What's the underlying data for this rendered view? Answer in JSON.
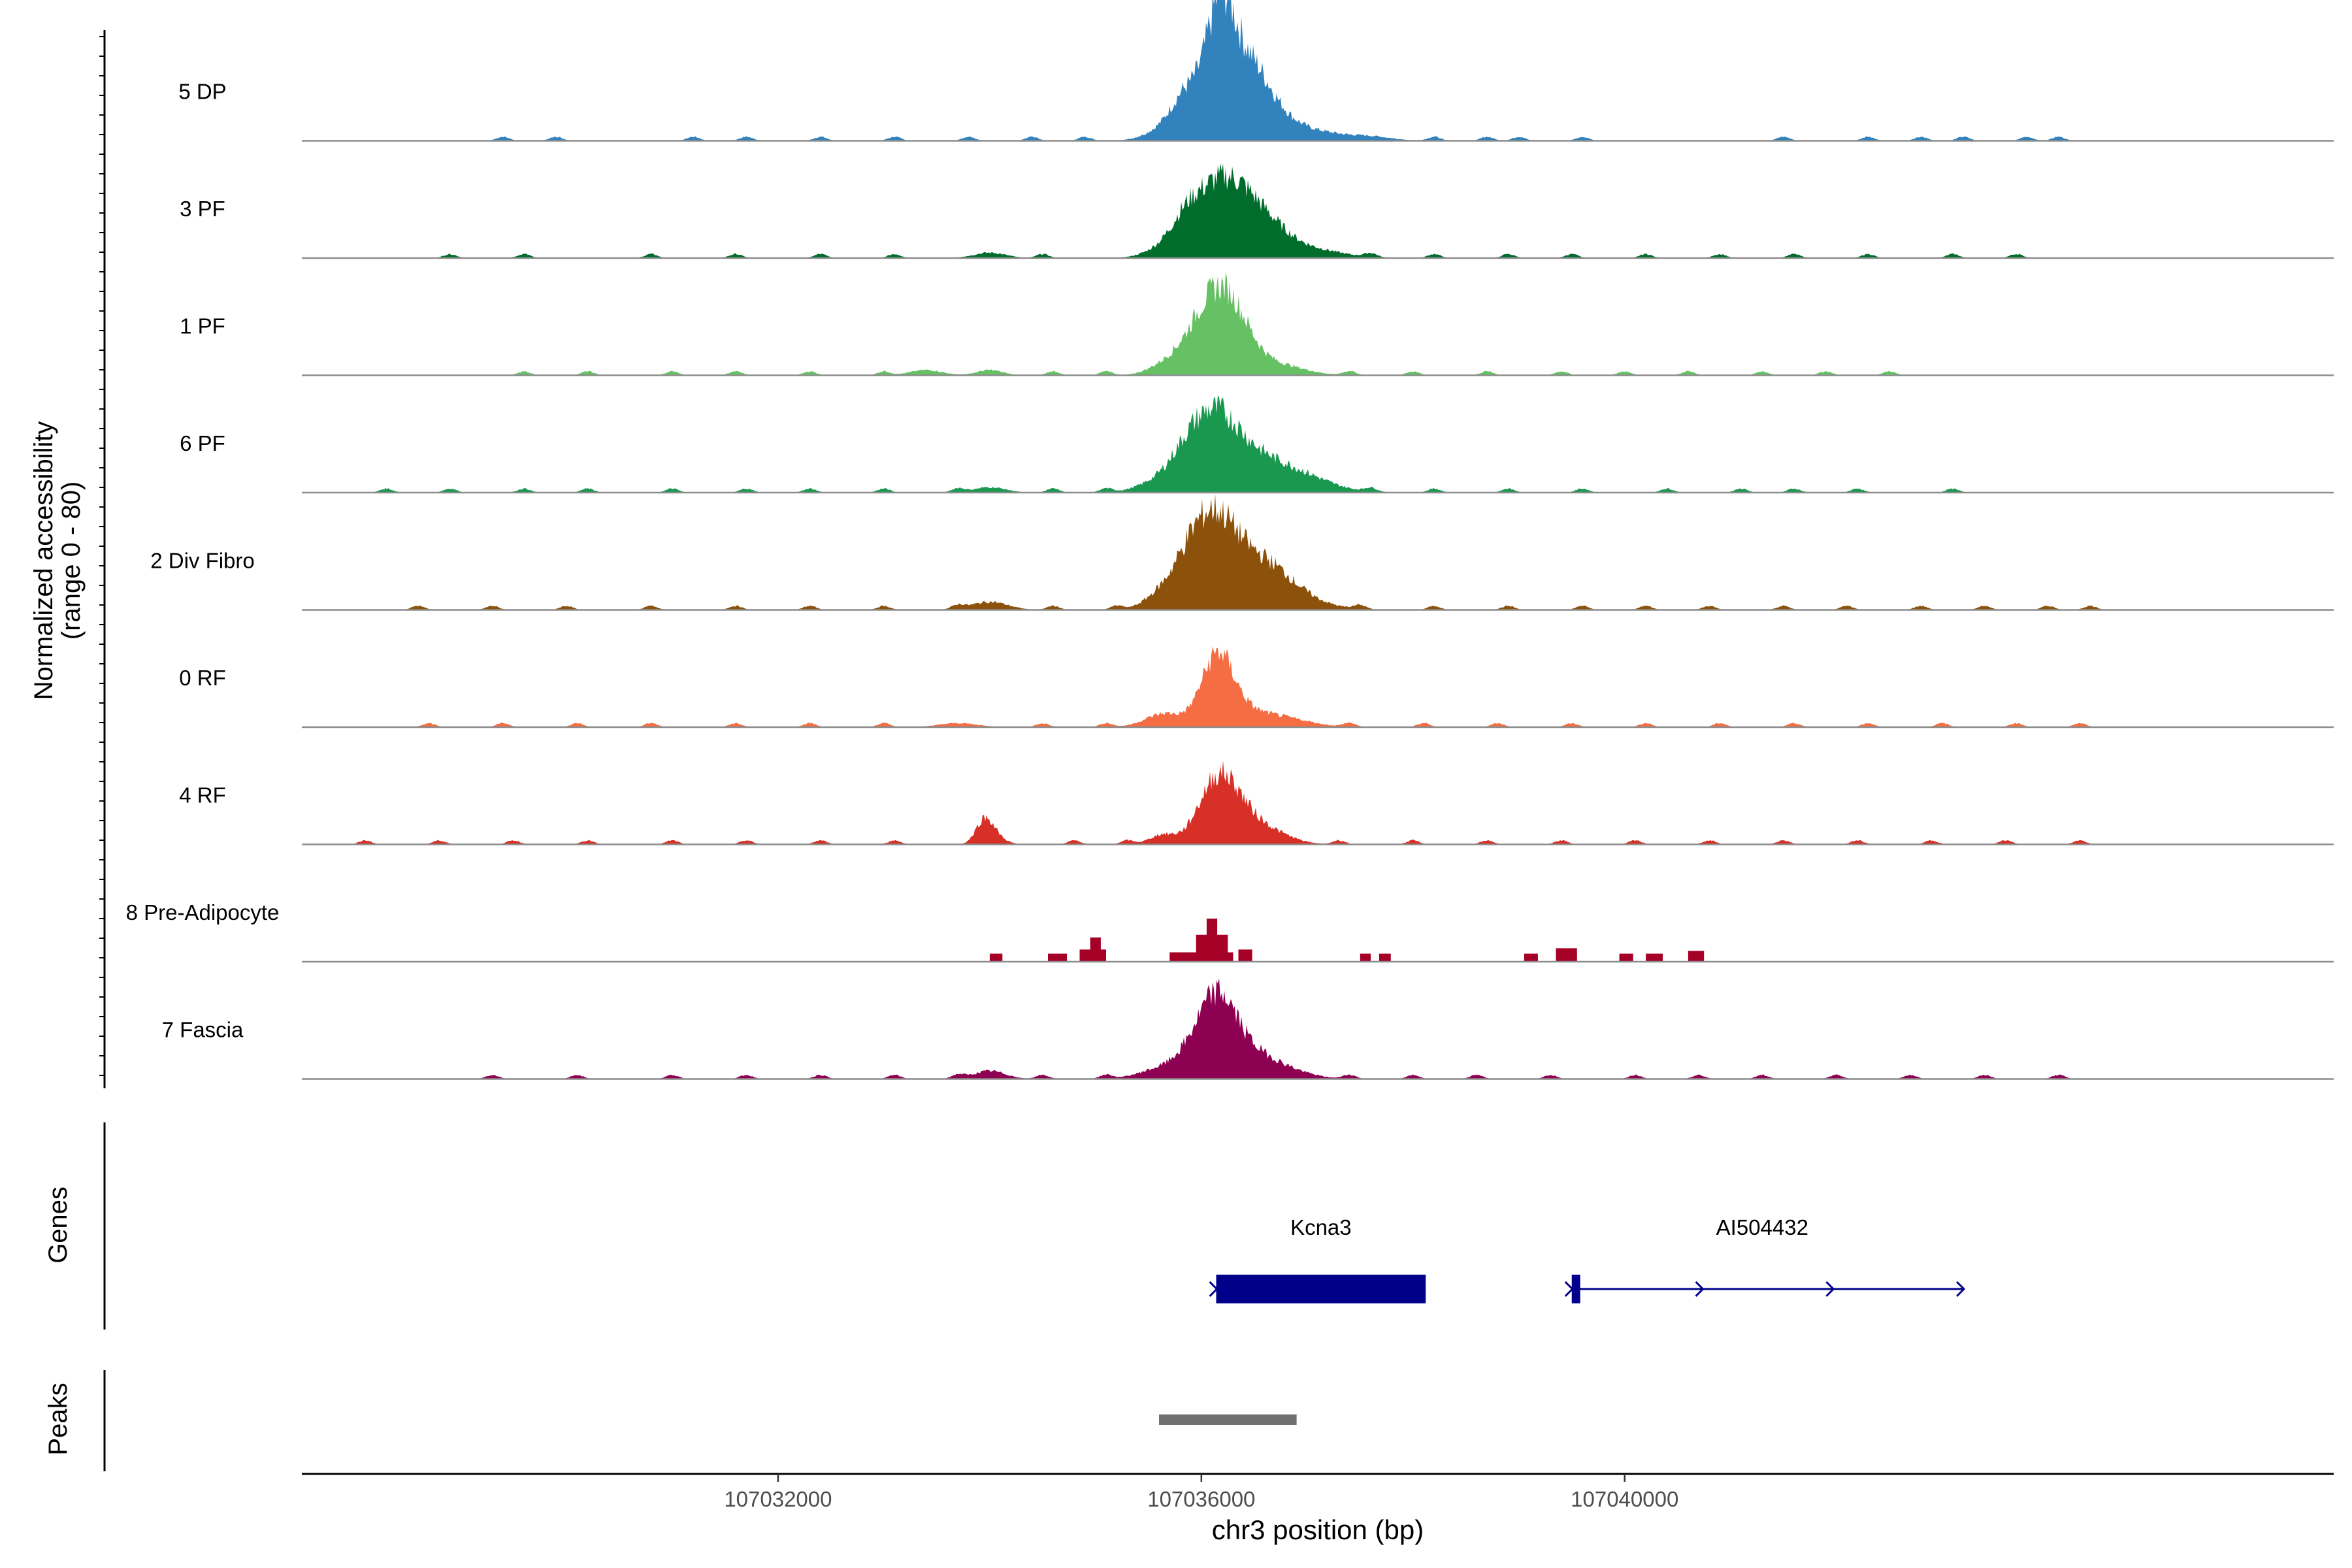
{
  "chart_data": {
    "type": "area",
    "title": "",
    "ylabel_line1": "Normalized accessibility",
    "ylabel_line2": "(range 0 - 80)",
    "xlabel": "chr3 position (bp)",
    "ylim": [
      0,
      80
    ],
    "xlim": [
      107027500,
      107046700
    ],
    "x_ticks": [
      107032000,
      107036000,
      107040000
    ],
    "x_tick_labels": [
      "107032000",
      "107036000",
      "107040000"
    ],
    "tracks": [
      {
        "name": "5 DP",
        "color": "#3182BD",
        "peaks": [
          [
            107035620,
            6,
            170
          ],
          [
            107035830,
            14,
            120
          ],
          [
            107036000,
            28,
            210
          ],
          [
            107036150,
            50,
            120
          ],
          [
            107036250,
            40,
            120
          ],
          [
            107036450,
            40,
            150
          ],
          [
            107036650,
            20,
            180
          ],
          [
            107037000,
            8,
            280
          ],
          [
            107037600,
            3,
            200
          ]
        ],
        "blips": [
          107029400,
          107029900,
          107031200,
          107031700,
          107032400,
          107033100,
          107033800,
          107034400,
          107034900,
          107038200,
          107038700,
          107039000,
          107039600,
          107041500,
          107042300,
          107042800,
          107043200,
          107043800,
          107044100
        ]
      },
      {
        "name": "3 PF",
        "color": "#006D2C",
        "peaks": [
          [
            107035620,
            5,
            170
          ],
          [
            107035850,
            14,
            140
          ],
          [
            107036100,
            38,
            240
          ],
          [
            107036350,
            30,
            220
          ],
          [
            107036650,
            15,
            200
          ],
          [
            107037000,
            7,
            300
          ],
          [
            107034000,
            4,
            150
          ]
        ],
        "blips": [
          107028900,
          107029600,
          107030800,
          107031600,
          107032400,
          107033100,
          107034500,
          107037600,
          107038200,
          107038900,
          107039500,
          107040200,
          107040900,
          107041600,
          107042300,
          107043100,
          107043700
        ]
      },
      {
        "name": "1 PF",
        "color": "#66C164",
        "peaks": [
          [
            107035650,
            7,
            160
          ],
          [
            107035900,
            14,
            160
          ],
          [
            107036150,
            50,
            190
          ],
          [
            107036350,
            20,
            180
          ],
          [
            107036700,
            8,
            260
          ],
          [
            107033400,
            4,
            150
          ],
          [
            107034000,
            4,
            120
          ]
        ],
        "blips": [
          107029600,
          107030200,
          107031000,
          107031600,
          107032300,
          107033000,
          107034600,
          107035100,
          107037400,
          107038000,
          107038700,
          107039400,
          107040000,
          107040600,
          107041300,
          107041900,
          107042500
        ]
      },
      {
        "name": "6 PF",
        "color": "#1A9850",
        "peaks": [
          [
            107035600,
            8,
            200
          ],
          [
            107035850,
            18,
            160
          ],
          [
            107036100,
            42,
            200
          ],
          [
            107036350,
            22,
            240
          ],
          [
            107036700,
            14,
            300
          ],
          [
            107037000,
            6,
            300
          ],
          [
            107034000,
            4,
            150
          ]
        ],
        "blips": [
          107028300,
          107028900,
          107029600,
          107030200,
          107031000,
          107031700,
          107032300,
          107033000,
          107033700,
          107034600,
          107035100,
          107037600,
          107038200,
          107038900,
          107039600,
          107040400,
          107041100,
          107041600,
          107042200,
          107043100
        ]
      },
      {
        "name": "2 Div Fibro",
        "color": "#8C510A",
        "peaks": [
          [
            107035600,
            10,
            150
          ],
          [
            107035850,
            20,
            150
          ],
          [
            107036100,
            55,
            200
          ],
          [
            107036400,
            28,
            260
          ],
          [
            107036700,
            16,
            230
          ],
          [
            107037000,
            5,
            260
          ],
          [
            107034000,
            6,
            170
          ]
        ],
        "blips": [
          107028600,
          107029300,
          107030000,
          107030800,
          107031600,
          107032300,
          107033000,
          107033700,
          107034600,
          107035200,
          107037500,
          107038200,
          107038900,
          107039600,
          107040200,
          107040800,
          107041500,
          107042100,
          107042800,
          107043400,
          107044000,
          107044400
        ]
      },
      {
        "name": "0 RF",
        "color": "#F46D43",
        "peaks": [
          [
            107035650,
            10,
            180
          ],
          [
            107036150,
            50,
            150
          ],
          [
            107036400,
            10,
            220
          ],
          [
            107036800,
            6,
            250
          ],
          [
            107033700,
            3,
            180
          ]
        ],
        "blips": [
          107028700,
          107029400,
          107030100,
          107030800,
          107031600,
          107032300,
          107033000,
          107034500,
          107035100,
          107037400,
          107038100,
          107038800,
          107039500,
          107040200,
          107040900,
          107041600,
          107042300,
          107043000,
          107043700,
          107044300
        ]
      },
      {
        "name": "4 RF",
        "color": "#D73027",
        "peaks": [
          [
            107035630,
            7,
            120
          ],
          [
            107036150,
            45,
            180
          ],
          [
            107036400,
            16,
            200
          ],
          [
            107036700,
            6,
            200
          ],
          [
            107033950,
            17,
            80
          ],
          [
            107034050,
            5,
            100
          ]
        ],
        "blips": [
          107028100,
          107028800,
          107029500,
          107030200,
          107031000,
          107031700,
          107032400,
          107033100,
          107034800,
          107035300,
          107037300,
          107038000,
          107038700,
          107039400,
          107040100,
          107040800,
          107041500,
          107042200,
          107042900,
          107043600,
          107044300
        ]
      },
      {
        "name": "8 Pre-Adipocyte",
        "color": "#A50026",
        "peaks": [],
        "blips": [],
        "blocks": [
          [
            107034000,
            107034120,
            6
          ],
          [
            107034550,
            107034730,
            6
          ],
          [
            107034850,
            107035100,
            9
          ],
          [
            107034950,
            107035050,
            18
          ],
          [
            107035700,
            107036300,
            7
          ],
          [
            107035950,
            107036250,
            20
          ],
          [
            107036050,
            107036150,
            32
          ],
          [
            107036350,
            107036480,
            9
          ],
          [
            107037500,
            107037600,
            6
          ],
          [
            107037680,
            107037790,
            6
          ],
          [
            107039050,
            107039180,
            6
          ],
          [
            107039350,
            107039550,
            10
          ],
          [
            107039950,
            107040080,
            6
          ],
          [
            107040200,
            107040360,
            6
          ],
          [
            107040600,
            107040750,
            8
          ]
        ]
      },
      {
        "name": "7 Fascia",
        "color": "#8E0152",
        "peaks": [
          [
            107035600,
            7,
            200
          ],
          [
            107035900,
            14,
            160
          ],
          [
            107036150,
            50,
            170
          ],
          [
            107036400,
            18,
            230
          ],
          [
            107036750,
            7,
            250
          ],
          [
            107034000,
            6,
            150
          ]
        ],
        "blips": [
          107029300,
          107030100,
          107031000,
          107031700,
          107032400,
          107033100,
          107033700,
          107034500,
          107035100,
          107037400,
          107038000,
          107038600,
          107039300,
          107040100,
          107040700,
          107041300,
          107042000,
          107042700,
          107043400,
          107044100
        ]
      }
    ],
    "genes": [
      {
        "name": "Kcna3",
        "start": 107036140,
        "end": 107038120,
        "block_start": 107036140,
        "block_end": 107038120,
        "strand": "+",
        "label_x": 107037130
      },
      {
        "name": "AI504432",
        "start": 107039500,
        "end": 107043200,
        "block_start": 107039500,
        "block_end": 107039580,
        "strand": "+",
        "label_x": 107041300
      }
    ],
    "peaks_track": [
      {
        "start": 107035600,
        "end": 107036900
      }
    ],
    "panel_labels": {
      "genes": "Genes",
      "peaks": "Peaks"
    },
    "colors": {
      "axis": "#000000",
      "baseline": "#8c8c8c",
      "gene": "#00008B",
      "peak_region": "#707070",
      "tick_label": "#4d4d4d"
    }
  }
}
